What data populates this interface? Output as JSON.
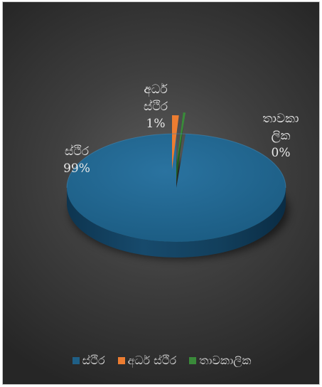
{
  "chart_data": {
    "type": "pie",
    "style": "3d",
    "categories": [
      "ස්ථිර",
      "අර්ධ ස්ථිර",
      "තාවකාලික"
    ],
    "values": [
      99,
      1,
      0
    ],
    "value_format": "percent",
    "data_labels": [
      {
        "lines": [
          "ස්ථිර",
          "99%"
        ]
      },
      {
        "lines": [
          "අර්ධ",
          "ස්ථිර",
          "1%"
        ]
      },
      {
        "lines": [
          "තාවකා",
          "ලික",
          "0%"
        ]
      }
    ],
    "colors": [
      "#1f5f86",
      "#ed7d31",
      "#3a8a3a"
    ],
    "legend": "bottom",
    "legend_labels": [
      "ස්ථිර",
      "අර්ධ ස්ථිර",
      "තාවකාලික"
    ]
  }
}
